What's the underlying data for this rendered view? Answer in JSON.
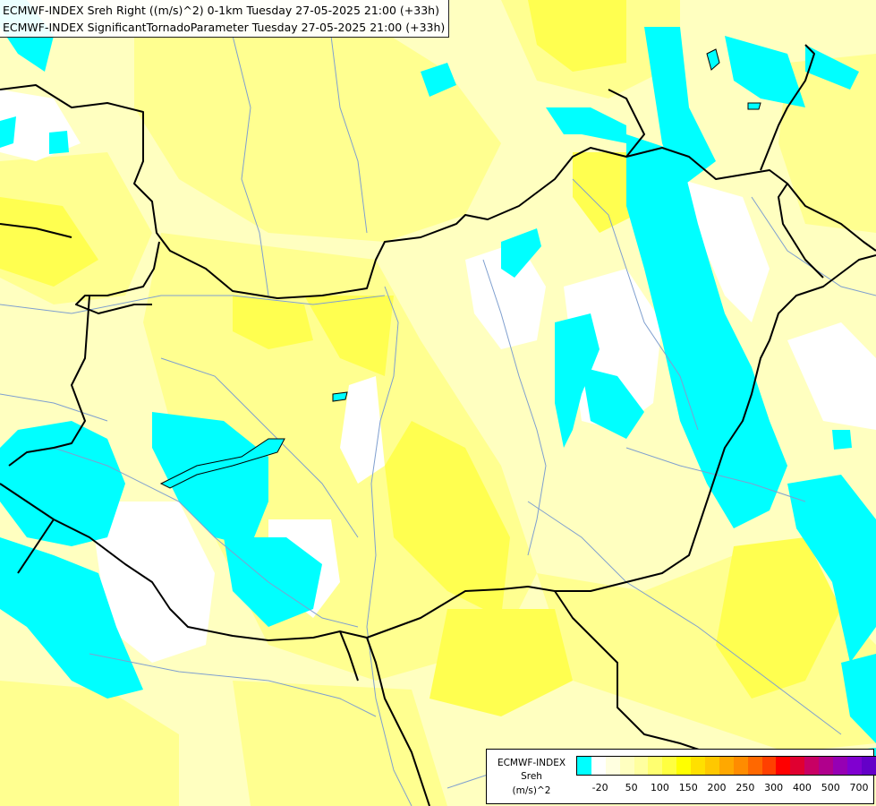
{
  "title": {
    "line1": "ECMWF-INDEX Sreh Right ((m/s)^2) 0-1km Tuesday 27-05-2025 21:00 (+33h)",
    "line2": "ECMWF-INDEX SignificantTornadoParameter Tuesday 27-05-2025 21:00 (+33h)"
  },
  "colors": {
    "cyan": "#00ffff",
    "white": "#ffffff",
    "pale_yellow": "#ffffc0",
    "light_yellow": "#ffff90",
    "yellow": "#ffff50",
    "bright_yellow": "#ffff00",
    "border": "#000000",
    "river": "#7f9fcf"
  },
  "legend": {
    "line1": "ECMWF-INDEX",
    "line2": "Sreh",
    "line3": "(m/s)^2",
    "swatch_colors": [
      "#00ffff",
      "#ffffff",
      "#ffffe0",
      "#ffffc0",
      "#ffffa0",
      "#ffff70",
      "#ffff40",
      "#ffff00",
      "#ffe000",
      "#ffc800",
      "#ffa800",
      "#ff8c00",
      "#ff6800",
      "#ff4000",
      "#ff0000",
      "#e00030",
      "#c80064",
      "#b0008c",
      "#9600b4",
      "#8000d0",
      "#6400c8",
      "#4000a8",
      "#200090",
      "#100070"
    ],
    "ticks": [
      "-20",
      "50",
      "100",
      "150",
      "200",
      "250",
      "300",
      "400",
      "500",
      "700"
    ]
  }
}
